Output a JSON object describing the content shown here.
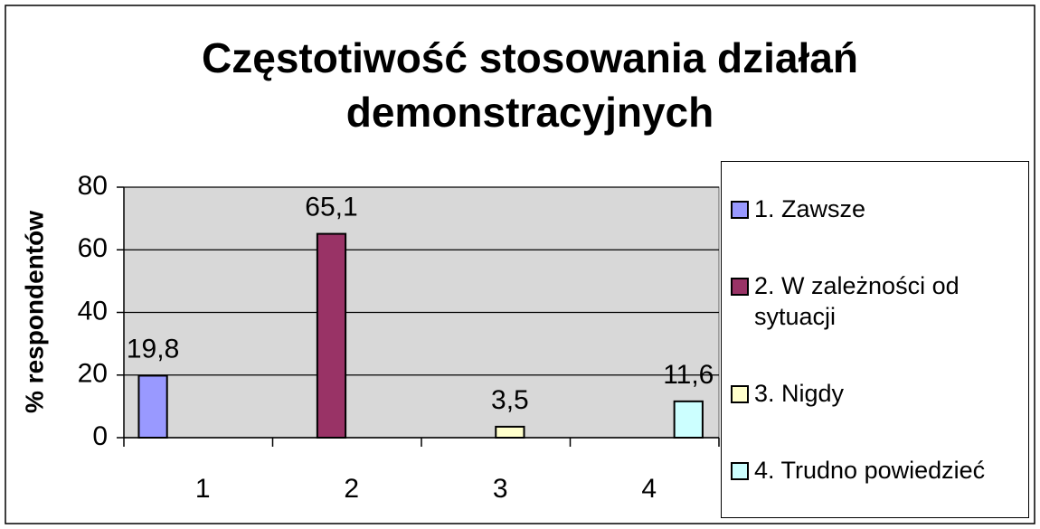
{
  "chart_data": {
    "type": "bar",
    "title": [
      "Częstotiwość stosowania działań",
      "demonstracyjnych"
    ],
    "ylabel": "% respondentów",
    "categories": [
      "1",
      "2",
      "3",
      "4"
    ],
    "series": [
      {
        "name": "1. Zawsze",
        "color": "#9999ff",
        "values": [
          19.8,
          null,
          null,
          null
        ],
        "value_labels": [
          "19,8",
          null,
          null,
          null
        ]
      },
      {
        "name": "2. W zależności od sytuacji",
        "color": "#993366",
        "values": [
          null,
          65.1,
          null,
          null
        ],
        "value_labels": [
          null,
          "65,1",
          null,
          null
        ]
      },
      {
        "name": "3. Nigdy",
        "color": "#ffffcc",
        "values": [
          null,
          null,
          3.5,
          null
        ],
        "value_labels": [
          null,
          null,
          "3,5",
          null
        ]
      },
      {
        "name": "4. Trudno powiedzieć",
        "color": "#ccffff",
        "values": [
          null,
          null,
          null,
          11.6
        ],
        "value_labels": [
          null,
          null,
          null,
          "11,6"
        ]
      }
    ],
    "ylim": [
      0,
      80
    ],
    "yticks": [
      0,
      20,
      40,
      60,
      80
    ],
    "grid": true,
    "legend": "right"
  }
}
